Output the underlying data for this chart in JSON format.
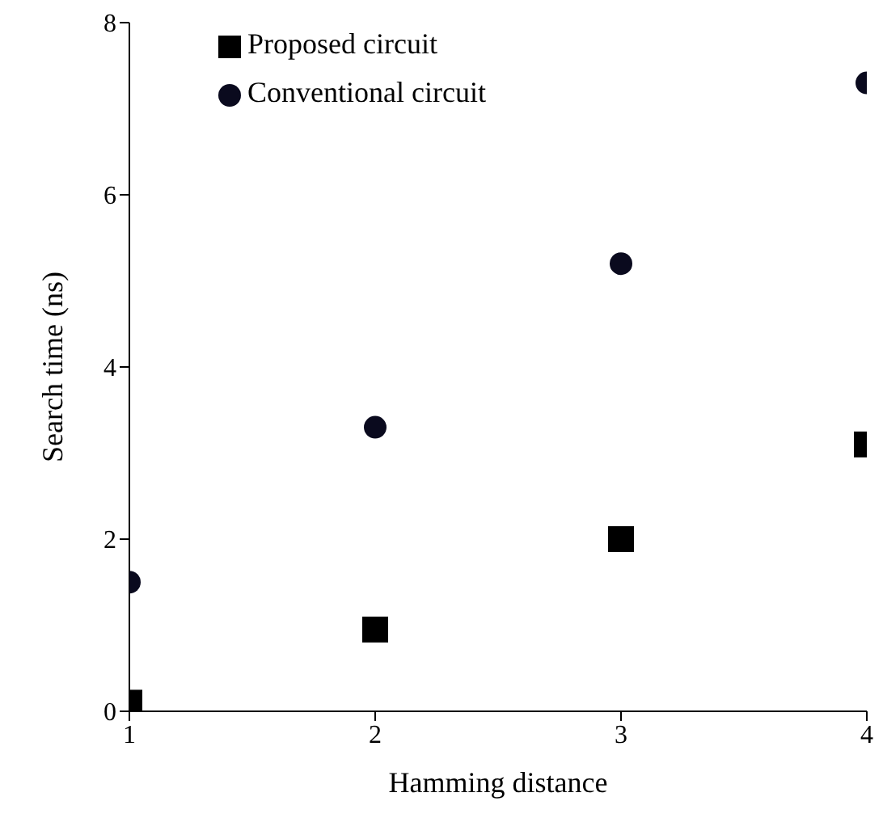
{
  "chart_data": {
    "type": "scatter",
    "xlabel": "Hamming distance",
    "ylabel": "Search time (ns)",
    "x": [
      1,
      2,
      3,
      4
    ],
    "series": [
      {
        "name": "Proposed circuit",
        "color": "#000000",
        "marker": "square",
        "values": [
          0.1,
          0.95,
          2.0,
          3.1
        ]
      },
      {
        "name": "Conventional circuit",
        "color": "#0a0a1e",
        "marker": "circle",
        "values": [
          1.5,
          3.3,
          5.2,
          7.3
        ]
      }
    ],
    "xlim": [
      1,
      4
    ],
    "xticks": [
      1,
      2,
      3,
      4
    ],
    "ylim": [
      0,
      8
    ],
    "yticks": [
      0,
      2,
      4,
      6,
      8
    ],
    "grid": false,
    "legend": "top left"
  }
}
